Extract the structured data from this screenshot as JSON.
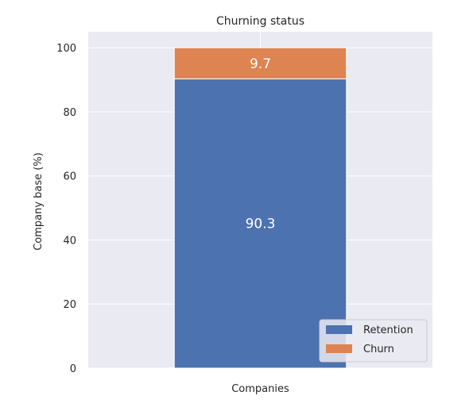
{
  "chart_data": {
    "type": "bar",
    "stacked": true,
    "title": "Churning status",
    "categories": [
      "Companies"
    ],
    "xlabel": "",
    "ylabel": "Company base (%)",
    "ylim": [
      0,
      105
    ],
    "yticks": [
      0,
      20,
      40,
      60,
      80,
      100
    ],
    "grid": true,
    "legend_position": "bottom-right",
    "series": [
      {
        "name": "Retention",
        "values": [
          90.3
        ],
        "color": "#4c72b0",
        "data_label": "90.3"
      },
      {
        "name": "Churn",
        "values": [
          9.7
        ],
        "color": "#dd8452",
        "data_label": "9.7"
      }
    ],
    "colors": {
      "plot_background": "#eaeaf2",
      "grid": "#ffffff"
    }
  }
}
